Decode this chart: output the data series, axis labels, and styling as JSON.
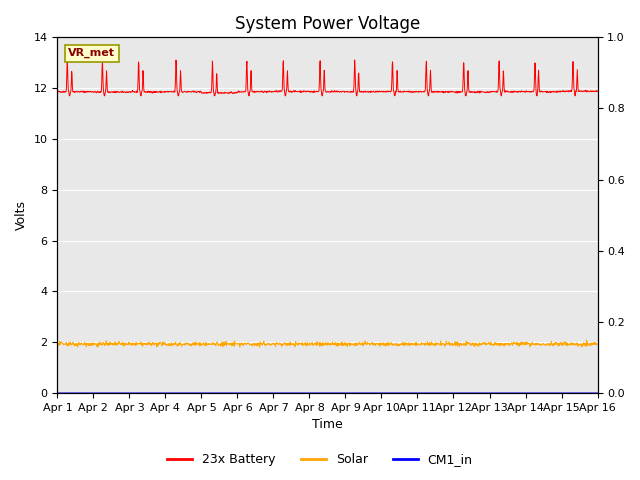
{
  "title": "System Power Voltage",
  "xlabel": "Time",
  "ylabel": "Volts",
  "ylim_left": [
    0,
    14
  ],
  "ylim_right": [
    0.0,
    1.0
  ],
  "yticks_left": [
    0,
    2,
    4,
    6,
    8,
    10,
    12,
    14
  ],
  "yticks_right": [
    0.0,
    0.2,
    0.4,
    0.6,
    0.8,
    1.0
  ],
  "num_days": 15,
  "legend_labels": [
    "23x Battery",
    "Solar",
    "CM1_in"
  ],
  "legend_colors": [
    "#ff0000",
    "#ffa500",
    "#0000ff"
  ],
  "battery_base": 11.85,
  "solar_base": 1.93,
  "bg_color": "#e8e8e8",
  "annotation_text": "VR_met",
  "title_fontsize": 12,
  "axis_label_fontsize": 9,
  "tick_fontsize": 8
}
